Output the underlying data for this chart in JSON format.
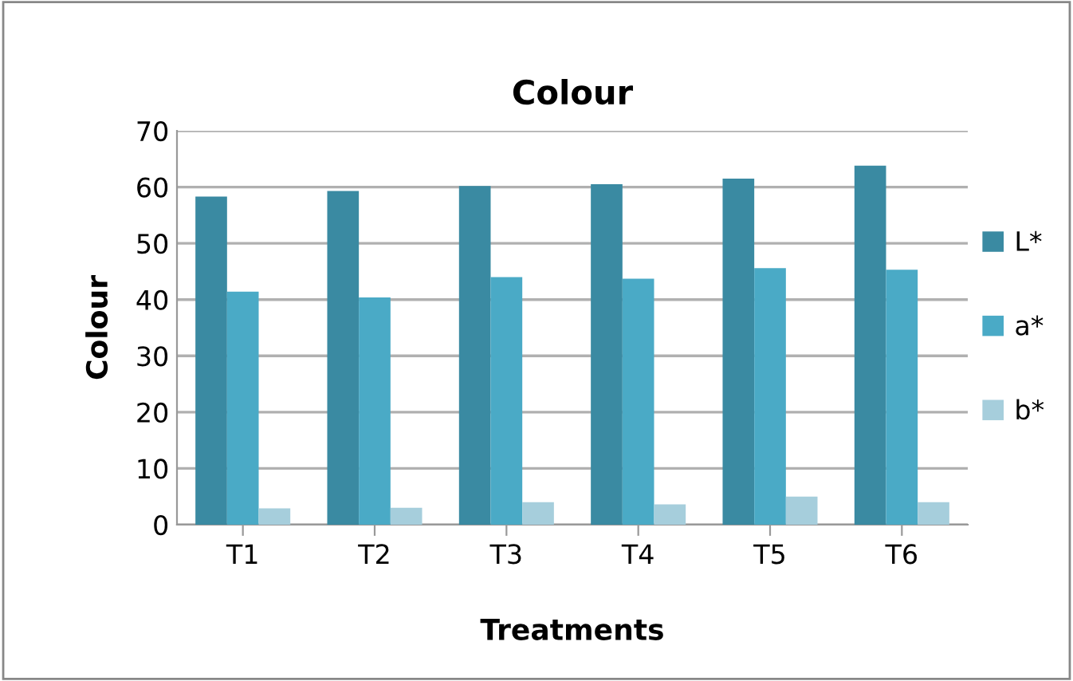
{
  "chart_data": {
    "type": "bar",
    "title": "Colour",
    "xlabel": "Treatments",
    "ylabel": "Colour",
    "categories": [
      "T1",
      "T2",
      "T3",
      "T4",
      "T5",
      "T6"
    ],
    "series": [
      {
        "name": "L*",
        "color": "#3a8aa2",
        "values": [
          58.3,
          59.3,
          60.2,
          60.5,
          61.5,
          63.8
        ]
      },
      {
        "name": "a*",
        "color": "#4aaac6",
        "values": [
          41.4,
          40.4,
          44.0,
          43.7,
          45.6,
          45.3
        ]
      },
      {
        "name": "b*",
        "color": "#a6cedc",
        "values": [
          2.9,
          3.0,
          4.0,
          3.6,
          5.0,
          4.0
        ]
      }
    ],
    "ylim": [
      0,
      70
    ],
    "yticks": [
      0,
      10,
      20,
      30,
      40,
      50,
      60,
      70
    ],
    "grid": "y",
    "legend": "right"
  }
}
